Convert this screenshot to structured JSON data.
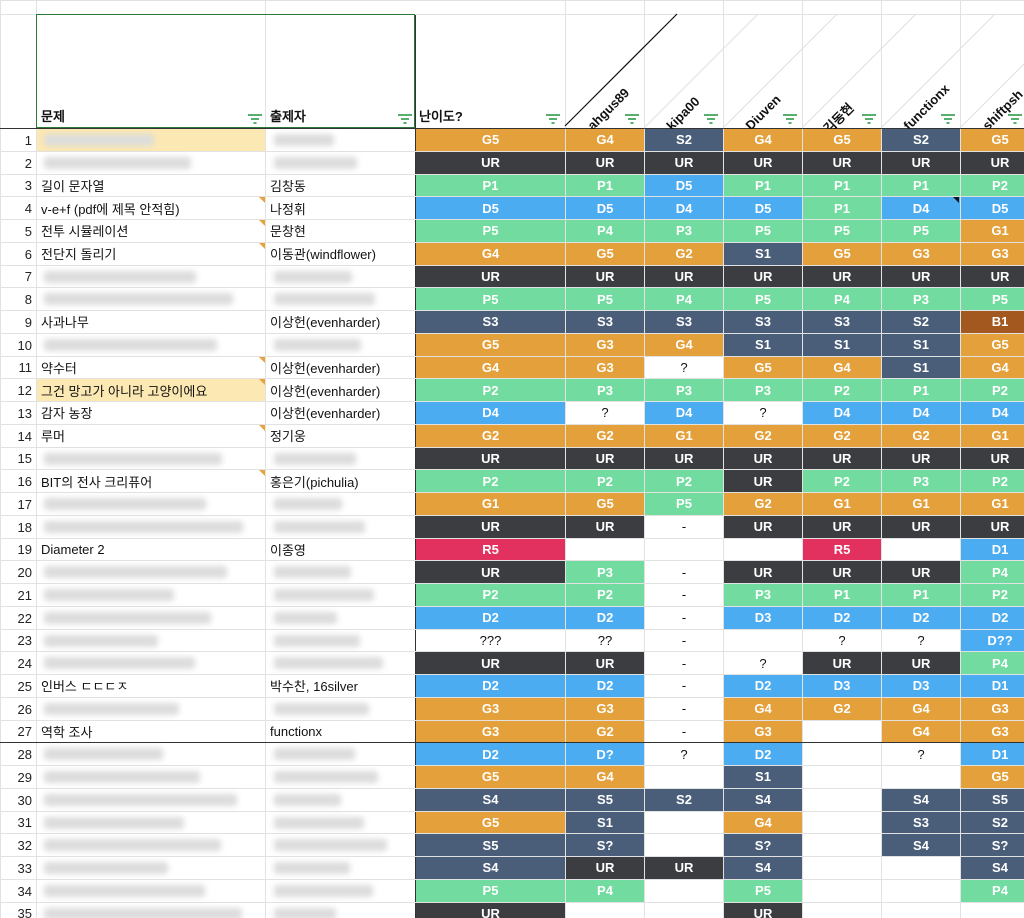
{
  "colors": {
    "G": "#e4a03a",
    "S": "#4a5e7a",
    "UR": "#3b3d40",
    "P": "#72db9f",
    "D": "#4cacf2",
    "R": "#e3315f",
    "B": "#a3581f",
    "blank": "#ffffff",
    "highlight": "#fce8b2",
    "header_border": "#2a7a3a"
  },
  "headers": {
    "problem": "문제",
    "author": "출제자",
    "difficulty": "난이도?",
    "solvers": [
      "ahgus89",
      "kipa00",
      "Diuven",
      "김동현",
      "functionx",
      "shiftpsh"
    ]
  },
  "rows": [
    {
      "n": "1",
      "problem": "",
      "author": "",
      "grades": [
        "G5",
        "G4",
        "S2",
        "G4",
        "G5",
        "S2",
        "G5"
      ],
      "blurred": true,
      "hl": true
    },
    {
      "n": "2",
      "problem": "",
      "author": "",
      "grades": [
        "UR",
        "UR",
        "UR",
        "UR",
        "UR",
        "UR",
        "UR"
      ],
      "blurred": true
    },
    {
      "n": "3",
      "problem": "길이 문자열",
      "author": "김창동",
      "grades": [
        "P1",
        "P1",
        "D5",
        "P1",
        "P1",
        "P1",
        "P2"
      ]
    },
    {
      "n": "4",
      "problem": "v-e+f (pdf에 제목 안적힘)",
      "author": "나정휘",
      "grades": [
        "D5",
        "D5",
        "D4",
        "D5",
        "P1",
        "D4",
        "D5"
      ],
      "note": true,
      "blacknote": 5
    },
    {
      "n": "5",
      "problem": "전투 시뮬레이션",
      "author": "문창현",
      "grades": [
        "P5",
        "P4",
        "P3",
        "P5",
        "P5",
        "P5",
        "G1"
      ],
      "note": true
    },
    {
      "n": "6",
      "problem": "전단지 돌리기",
      "author": "이동관(windflower)",
      "grades": [
        "G4",
        "G5",
        "G2",
        "S1",
        "G5",
        "G3",
        "G3"
      ],
      "note": true
    },
    {
      "n": "7",
      "problem": "",
      "author": "",
      "grades": [
        "UR",
        "UR",
        "UR",
        "UR",
        "UR",
        "UR",
        "UR"
      ],
      "blurred": true
    },
    {
      "n": "8",
      "problem": "",
      "author": "",
      "grades": [
        "P5",
        "P5",
        "P4",
        "P5",
        "P4",
        "P3",
        "P5"
      ],
      "blurred": true
    },
    {
      "n": "9",
      "problem": "사과나무",
      "author": "이상헌(evenharder)",
      "grades": [
        "S3",
        "S3",
        "S3",
        "S3",
        "S3",
        "S2",
        "B1"
      ]
    },
    {
      "n": "10",
      "problem": "",
      "author": "",
      "grades": [
        "G5",
        "G3",
        "G4",
        "S1",
        "S1",
        "S1",
        "G5"
      ],
      "blurred": true
    },
    {
      "n": "11",
      "problem": "약수터",
      "author": "이상헌(evenharder)",
      "grades": [
        "G4",
        "G3",
        "?",
        "G5",
        "G4",
        "S1",
        "G4"
      ],
      "note": true
    },
    {
      "n": "12",
      "problem": "그건 망고가 아니라 고양이에요",
      "author": "이상헌(evenharder)",
      "grades": [
        "P2",
        "P3",
        "P3",
        "P3",
        "P2",
        "P1",
        "P2"
      ],
      "note": true,
      "hl": true
    },
    {
      "n": "13",
      "problem": "감자 농장",
      "author": "이상헌(evenharder)",
      "grades": [
        "D4",
        "?",
        "D4",
        "?",
        "D4",
        "D4",
        "D4"
      ]
    },
    {
      "n": "14",
      "problem": "루머",
      "author": "정기웅",
      "grades": [
        "G2",
        "G2",
        "G1",
        "G2",
        "G2",
        "G2",
        "G1"
      ],
      "note": true
    },
    {
      "n": "15",
      "problem": "",
      "author": "",
      "grades": [
        "UR",
        "UR",
        "UR",
        "UR",
        "UR",
        "UR",
        "UR"
      ],
      "blurred": true
    },
    {
      "n": "16",
      "problem": "BIT의 전사 크리퓨어",
      "author": "홍은기(pichulia)",
      "grades": [
        "P2",
        "P2",
        "P2",
        "UR",
        "P2",
        "P3",
        "P2"
      ],
      "note": true
    },
    {
      "n": "17",
      "problem": "",
      "author": "",
      "grades": [
        "G1",
        "G5",
        "P5",
        "G2",
        "G1",
        "G1",
        "G1"
      ],
      "blurred": true
    },
    {
      "n": "18",
      "problem": "",
      "author": "",
      "grades": [
        "UR",
        "UR",
        "-",
        "UR",
        "UR",
        "UR",
        "UR"
      ],
      "blurred": true
    },
    {
      "n": "19",
      "problem": "Diameter 2",
      "author": "이종영",
      "grades": [
        "R5",
        "",
        "",
        "",
        "R5",
        "",
        "D1"
      ]
    },
    {
      "n": "20",
      "problem": "",
      "author": "",
      "grades": [
        "UR",
        "P3",
        "-",
        "UR",
        "UR",
        "UR",
        "P4"
      ],
      "blurred": true
    },
    {
      "n": "21",
      "problem": "",
      "author": "",
      "grades": [
        "P2",
        "P2",
        "-",
        "P3",
        "P1",
        "P1",
        "P2"
      ],
      "blurred": true
    },
    {
      "n": "22",
      "problem": "",
      "author": "",
      "grades": [
        "D2",
        "D2",
        "-",
        "D3",
        "D2",
        "D2",
        "D2"
      ],
      "blurred": true
    },
    {
      "n": "23",
      "problem": "",
      "author": "",
      "grades": [
        "???",
        "??",
        "-",
        "",
        "?",
        "?",
        "D??"
      ],
      "blurred": true
    },
    {
      "n": "24",
      "problem": "",
      "author": "",
      "grades": [
        "UR",
        "UR",
        "-",
        "?",
        "UR",
        "UR",
        "P4"
      ],
      "blurred": true
    },
    {
      "n": "25",
      "problem": "인버스 ㄷㄷㄷㅈ",
      "author": "박수찬, 16silver",
      "grades": [
        "D2",
        "D2",
        "-",
        "D2",
        "D3",
        "D3",
        "D1"
      ]
    },
    {
      "n": "26",
      "problem": "",
      "author": "",
      "grades": [
        "G3",
        "G3",
        "-",
        "G4",
        "G2",
        "G4",
        "G3"
      ],
      "blurred": true
    },
    {
      "n": "27",
      "problem": "역학 조사",
      "author": "functionx",
      "grades": [
        "G3",
        "G2",
        "-",
        "G3",
        "",
        "G4",
        "G3"
      ]
    },
    {
      "n": "28",
      "problem": "",
      "author": "",
      "grades": [
        "D2",
        "D?",
        "?",
        "D2",
        "",
        "?",
        "D1"
      ],
      "blurred": true
    },
    {
      "n": "29",
      "problem": "",
      "author": "",
      "grades": [
        "G5",
        "G4",
        "",
        "S1",
        "",
        "",
        "G5"
      ],
      "blurred": true
    },
    {
      "n": "30",
      "problem": "",
      "author": "",
      "grades": [
        "S4",
        "S5",
        "S2",
        "S4",
        "",
        "S4",
        "S5"
      ],
      "blurred": true
    },
    {
      "n": "31",
      "problem": "",
      "author": "",
      "grades": [
        "G5",
        "S1",
        "",
        "G4",
        "",
        "S3",
        "S2"
      ],
      "blurred": true
    },
    {
      "n": "32",
      "problem": "",
      "author": "",
      "grades": [
        "S5",
        "S?",
        "",
        "S?",
        "",
        "S4",
        "S?"
      ],
      "blurred": true
    },
    {
      "n": "33",
      "problem": "",
      "author": "",
      "grades": [
        "S4",
        "UR",
        "UR",
        "S4",
        "",
        "",
        "S4"
      ],
      "blurred": true
    },
    {
      "n": "34",
      "problem": "",
      "author": "",
      "grades": [
        "P5",
        "P4",
        "",
        "P5",
        "",
        "",
        "P4"
      ],
      "blurred": true
    },
    {
      "n": "35",
      "problem": "",
      "author": "",
      "grades": [
        "UR",
        "",
        "",
        "UR",
        "",
        "",
        ""
      ],
      "blurred": true
    }
  ]
}
